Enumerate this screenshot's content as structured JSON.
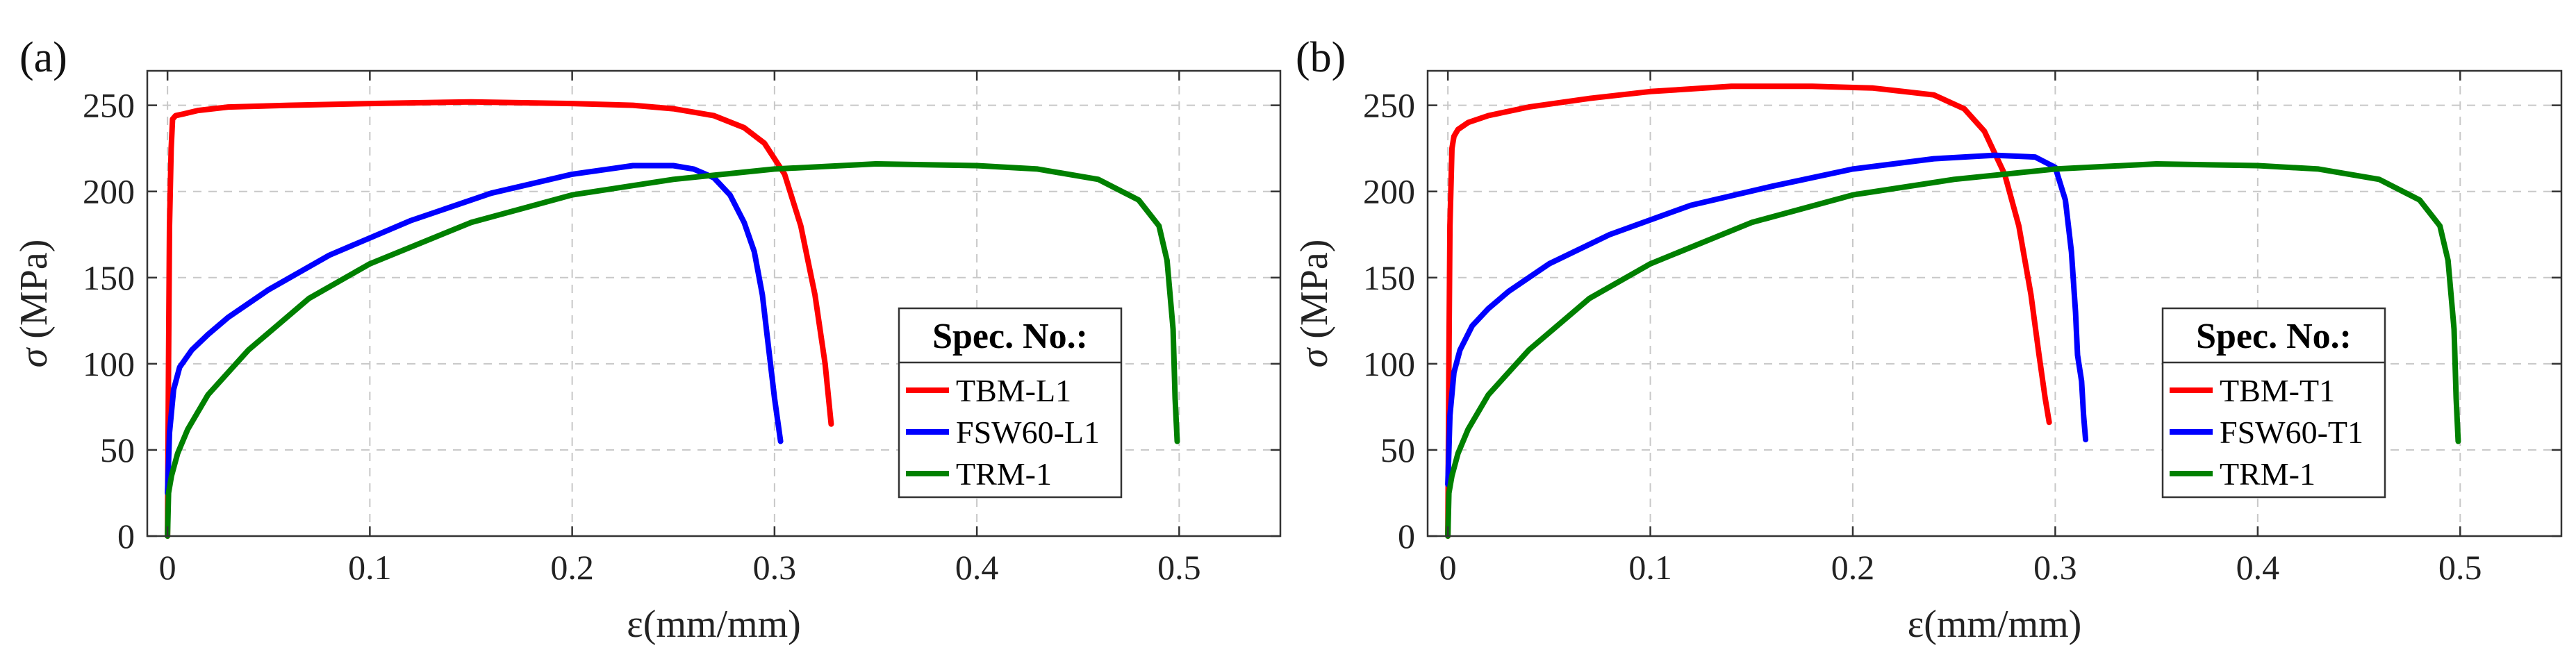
{
  "chart_data": [
    {
      "type": "line",
      "panel_label": "(a)",
      "xlabel": "ε(mm/mm)",
      "ylabel_symbol": "σ",
      "ylabel_unit": " (MPa)",
      "xlim": [
        -0.01,
        0.55
      ],
      "ylim": [
        0,
        270
      ],
      "xticks": [
        0,
        0.1,
        0.2,
        0.3,
        0.4,
        0.5
      ],
      "xtick_labels": [
        "0",
        "0.1",
        "0.2",
        "0.3",
        "0.4",
        "0.5"
      ],
      "yticks": [
        0,
        50,
        100,
        150,
        200,
        250
      ],
      "ytick_labels": [
        "0",
        "50",
        "100",
        "150",
        "200",
        "250"
      ],
      "grid": true,
      "legend_title": "Spec. No.:",
      "legend_position": "right",
      "series": [
        {
          "name": "TBM-L1",
          "color": "#ff0000",
          "x": [
            0.0,
            0.0005,
            0.001,
            0.0018,
            0.0025,
            0.004,
            0.008,
            0.015,
            0.03,
            0.06,
            0.1,
            0.15,
            0.2,
            0.23,
            0.25,
            0.27,
            0.285,
            0.295,
            0.305,
            0.313,
            0.32,
            0.325,
            0.328
          ],
          "y": [
            0,
            100,
            180,
            225,
            242,
            244,
            245,
            247,
            249,
            250,
            251,
            252,
            251,
            250,
            248,
            244,
            237,
            228,
            210,
            180,
            140,
            100,
            65
          ]
        },
        {
          "name": "FSW60-L1",
          "color": "#0000ff",
          "x": [
            0.0,
            0.001,
            0.003,
            0.006,
            0.012,
            0.02,
            0.03,
            0.05,
            0.08,
            0.12,
            0.16,
            0.2,
            0.23,
            0.25,
            0.26,
            0.27,
            0.278,
            0.285,
            0.29,
            0.294,
            0.297,
            0.3,
            0.303
          ],
          "y": [
            25,
            60,
            85,
            98,
            108,
            117,
            127,
            143,
            163,
            183,
            199,
            210,
            215,
            215,
            213,
            208,
            198,
            182,
            165,
            140,
            110,
            80,
            55
          ]
        },
        {
          "name": "TRM-1",
          "color": "#008000",
          "x": [
            0.0,
            0.0005,
            0.002,
            0.005,
            0.01,
            0.02,
            0.04,
            0.07,
            0.1,
            0.15,
            0.2,
            0.25,
            0.3,
            0.35,
            0.4,
            0.43,
            0.46,
            0.48,
            0.49,
            0.494,
            0.497,
            0.498,
            0.499
          ],
          "y": [
            0,
            25,
            35,
            48,
            62,
            82,
            108,
            138,
            158,
            182,
            198,
            207,
            213,
            216,
            215,
            213,
            207,
            195,
            180,
            160,
            120,
            80,
            55
          ]
        }
      ]
    },
    {
      "type": "line",
      "panel_label": "(b)",
      "xlabel": "ε(mm/mm)",
      "ylabel_symbol": "σ",
      "ylabel_unit": " (MPa)",
      "xlim": [
        -0.01,
        0.55
      ],
      "ylim": [
        0,
        270
      ],
      "xticks": [
        0,
        0.1,
        0.2,
        0.3,
        0.4,
        0.5
      ],
      "xtick_labels": [
        "0",
        "0.1",
        "0.2",
        "0.3",
        "0.4",
        "0.5"
      ],
      "yticks": [
        0,
        50,
        100,
        150,
        200,
        250
      ],
      "ytick_labels": [
        "0",
        "50",
        "100",
        "150",
        "200",
        "250"
      ],
      "grid": true,
      "legend_title": "Spec. No.:",
      "legend_position": "right",
      "series": [
        {
          "name": "TBM-T1",
          "color": "#ff0000",
          "x": [
            0.0,
            0.0005,
            0.001,
            0.002,
            0.003,
            0.005,
            0.01,
            0.02,
            0.04,
            0.07,
            0.1,
            0.14,
            0.18,
            0.21,
            0.24,
            0.255,
            0.265,
            0.275,
            0.282,
            0.288,
            0.292,
            0.295,
            0.297
          ],
          "y": [
            0,
            100,
            180,
            225,
            232,
            236,
            240,
            244,
            249,
            254,
            258,
            261,
            261,
            260,
            256,
            248,
            235,
            210,
            180,
            140,
            105,
            80,
            66
          ]
        },
        {
          "name": "FSW60-T1",
          "color": "#0000ff",
          "x": [
            0.0,
            0.001,
            0.003,
            0.006,
            0.012,
            0.02,
            0.03,
            0.05,
            0.08,
            0.12,
            0.16,
            0.2,
            0.24,
            0.27,
            0.29,
            0.3,
            0.305,
            0.308,
            0.31,
            0.311,
            0.313,
            0.314,
            0.315
          ],
          "y": [
            30,
            70,
            95,
            108,
            122,
            132,
            142,
            158,
            175,
            192,
            203,
            213,
            219,
            221,
            220,
            214,
            195,
            165,
            130,
            105,
            90,
            70,
            56
          ]
        },
        {
          "name": "TRM-1",
          "color": "#008000",
          "x": [
            0.0,
            0.0005,
            0.002,
            0.005,
            0.01,
            0.02,
            0.04,
            0.07,
            0.1,
            0.15,
            0.2,
            0.25,
            0.3,
            0.35,
            0.4,
            0.43,
            0.46,
            0.48,
            0.49,
            0.494,
            0.497,
            0.498,
            0.499
          ],
          "y": [
            0,
            25,
            35,
            48,
            62,
            82,
            108,
            138,
            158,
            182,
            198,
            207,
            213,
            216,
            215,
            213,
            207,
            195,
            180,
            160,
            120,
            80,
            55
          ]
        }
      ]
    }
  ]
}
